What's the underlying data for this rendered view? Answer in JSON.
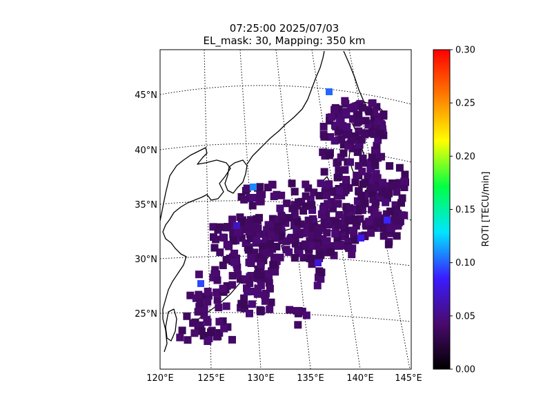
{
  "chart_data": {
    "type": "heatmap",
    "title": "07:25:00 2025/07/03",
    "subtitle": "EL_mask: 30, Mapping: 350 km",
    "map_region": {
      "lon_range": [
        120,
        145
      ],
      "lat_range": [
        20,
        49
      ]
    },
    "x_ticks": [
      "120°E",
      "125°E",
      "130°E",
      "135°E",
      "140°E",
      "145°E"
    ],
    "y_ticks": [
      "25°N",
      "30°N",
      "35°N",
      "40°N",
      "45°N"
    ],
    "colorbar": {
      "label": "ROTI [TECU/min]",
      "range": [
        0.0,
        0.3
      ],
      "ticks": [
        "0.00",
        "0.05",
        "0.10",
        "0.15",
        "0.20",
        "0.25",
        "0.30"
      ],
      "colormap": [
        "#000000",
        "#4a0a6e",
        "#3a1cff",
        "#00e5ff",
        "#00ff44",
        "#ffff00",
        "#ff7a00",
        "#ff0000"
      ]
    },
    "typical_roti": 0.04,
    "max_roti": 0.12,
    "grid": true,
    "legend": "right"
  }
}
